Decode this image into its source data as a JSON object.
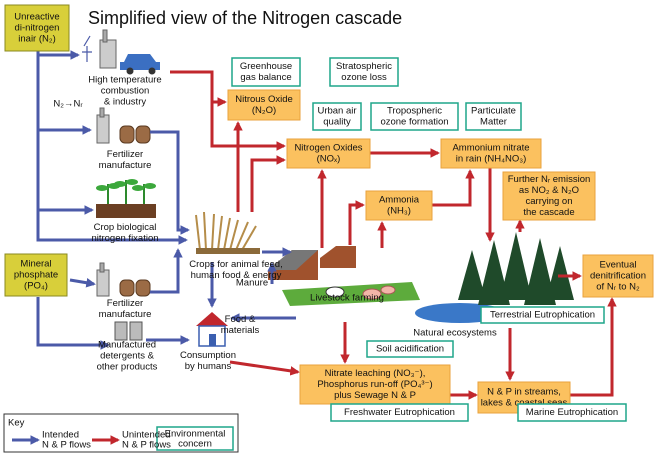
{
  "title": "Simplified view of the Nitrogen cascade",
  "sources": [
    {
      "lines": [
        "Unreactive",
        "di-nitrogen",
        "inair (N₂)"
      ]
    },
    {
      "lines": [
        "Mineral",
        "phosphate",
        "(PO₄)"
      ]
    }
  ],
  "pools": [
    {
      "lines": [
        "Nitrous Oxide",
        "(N₂O)"
      ]
    },
    {
      "lines": [
        "Nitrogen Oxides",
        "(NOₓ)"
      ]
    },
    {
      "lines": [
        "Ammonium nitrate",
        "in rain (NH₄NO₃)"
      ]
    },
    {
      "lines": [
        "Ammonia",
        "(NH₃)"
      ]
    },
    {
      "lines": [
        "Further Nᵣ emission",
        "as NO₂ & N₂O",
        "carrying on",
        "the cascade"
      ]
    },
    {
      "lines": [
        "Eventual",
        "denitrification",
        "of Nᵣ to N₂"
      ]
    },
    {
      "lines": [
        "Nitrate leaching (NO₃⁻),",
        "Phosphorus run-off (PO₄³⁻)",
        "plus Sewage N & P"
      ]
    },
    {
      "lines": [
        "N & P in streams,",
        "lakes & coastal seas"
      ]
    }
  ],
  "concerns": [
    {
      "lines": [
        "Greenhouse",
        "gas balance"
      ]
    },
    {
      "lines": [
        "Stratospheric",
        "ozone loss"
      ]
    },
    {
      "lines": [
        "Urban air",
        "quality"
      ]
    },
    {
      "lines": [
        "Tropospheric",
        "ozone formation"
      ]
    },
    {
      "lines": [
        "Particulate",
        "Matter"
      ]
    },
    {
      "lines": [
        "Terrestrial Eutrophication"
      ]
    },
    {
      "lines": [
        "Soil acidification"
      ]
    },
    {
      "lines": [
        "Freshwater Eutrophication"
      ]
    },
    {
      "lines": [
        "Marine Eutrophication"
      ]
    }
  ],
  "labels": [
    {
      "lines": [
        "High temperature",
        "combustion",
        "& industry"
      ]
    },
    {
      "lines": [
        "N₂→Nᵣ"
      ]
    },
    {
      "lines": [
        "Fertilizer",
        "manufacture"
      ]
    },
    {
      "lines": [
        "Crop biological",
        "nitrogen fixation"
      ]
    },
    {
      "lines": [
        "Crops for animal feed,",
        "human food & energy"
      ]
    },
    {
      "lines": [
        "Manure"
      ]
    },
    {
      "lines": [
        "Livestock farming"
      ]
    },
    {
      "lines": [
        "Food &",
        "materials"
      ]
    },
    {
      "lines": [
        "Fertilizer",
        "manufacture"
      ]
    },
    {
      "lines": [
        "Manufactured",
        "detergents &",
        "other products"
      ]
    },
    {
      "lines": [
        "Consumption",
        "by humans"
      ]
    },
    {
      "lines": [
        "Natural ecosystems"
      ]
    }
  ],
  "key": {
    "title": "Key",
    "intended": [
      "Intended",
      "N & P  flows"
    ],
    "unintended": [
      "Unintended",
      "N & P flows"
    ],
    "concern": [
      "Environmental",
      "concern"
    ]
  }
}
